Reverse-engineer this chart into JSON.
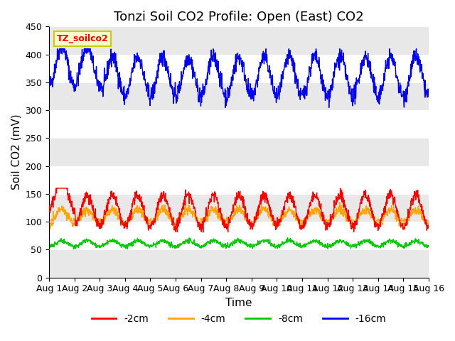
{
  "title": "Tonzi Soil CO2 Profile: Open (East) CO2",
  "xlabel": "Time",
  "ylabel": "Soil CO2 (mV)",
  "ylim": [
    0,
    450
  ],
  "yticks": [
    0,
    50,
    100,
    150,
    200,
    250,
    300,
    350,
    400,
    450
  ],
  "xlim_days": [
    0,
    15
  ],
  "xtick_labels": [
    "Aug 1",
    "Aug 2",
    "Aug 3",
    "Aug 4",
    "Aug 5",
    "Aug 6",
    "Aug 7",
    "Aug 8",
    "Aug 9",
    "Aug 10",
    "Aug 11",
    "Aug 12",
    "Aug 13",
    "Aug 14",
    "Aug 15",
    "Aug 16"
  ],
  "colors": {
    "-2cm": "#ff0000",
    "-4cm": "#ffa500",
    "-8cm": "#00cc00",
    "-16cm": "#0000ff"
  },
  "legend_box_text": "TZ_soilco2",
  "legend_box_facecolor": "#ffffcc",
  "legend_box_edgecolor": "#cccc00",
  "legend_box_textcolor": "#ff0000",
  "bg_band_color": "#e8e8e8",
  "title_fontsize": 13,
  "axis_label_fontsize": 11,
  "tick_fontsize": 9,
  "legend_fontsize": 10,
  "line_width": 1.0,
  "n_points": 1440,
  "days": 15,
  "series": {
    "-16cm": {
      "base": 360,
      "amplitude": 35,
      "noise": 8,
      "freq": 1.0
    },
    "-2cm": {
      "base": 120,
      "amplitude": 28,
      "noise": 5,
      "freq": 1.0
    },
    "-4cm": {
      "base": 110,
      "amplitude": 12,
      "noise": 4,
      "freq": 1.0
    },
    "-8cm": {
      "base": 61,
      "amplitude": 5,
      "noise": 2,
      "freq": 1.0
    }
  }
}
